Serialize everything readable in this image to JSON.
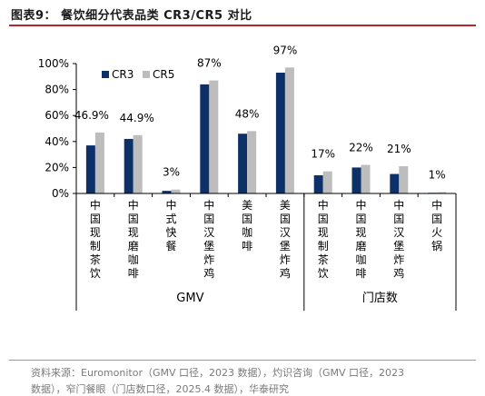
{
  "figure_title": "图表9： 餐饮细分代表品类 CR3/CR5 对比",
  "source": {
    "line1": "资料来源：Euromonitor（GMV 口径，2023 数据），灼识咨询（GMV 口径，2023",
    "line2": "数据），窄门餐眼（门店数口径，2025.4 数据），华泰研究"
  },
  "colors": {
    "cr3": "#0d3068",
    "cr5": "#bdbdbd",
    "axis": "#000000",
    "title_rule": "#b5262d"
  },
  "chart_data": {
    "type": "bar",
    "categories": [
      "中国现制茶饮",
      "中国现磨咖啡",
      "中式快餐",
      "中国汉堡炸鸡",
      "美国咖啡",
      "美国汉堡炸鸡",
      "中国现制茶饮",
      "中国现磨咖啡",
      "中国汉堡炸鸡",
      "中国火锅"
    ],
    "series": [
      {
        "name": "CR3",
        "values": [
          37,
          42,
          2,
          84,
          46,
          93,
          14,
          20,
          15,
          0.5
        ]
      },
      {
        "name": "CR5",
        "values": [
          46.9,
          44.9,
          3,
          87,
          48,
          97,
          17,
          22,
          21,
          1
        ]
      }
    ],
    "data_labels": [
      "46.9%",
      "44.9%",
      "3%",
      "87%",
      "48%",
      "97%",
      "17%",
      "22%",
      "21%",
      "1%"
    ],
    "groups": [
      {
        "label": "GMV",
        "categories": 6
      },
      {
        "label": "门店数",
        "categories": 4
      }
    ],
    "yticks": [
      "0%",
      "20%",
      "40%",
      "60%",
      "80%",
      "100%"
    ],
    "ylim": [
      0,
      100
    ],
    "legend_position": "top-left",
    "grid": false
  }
}
